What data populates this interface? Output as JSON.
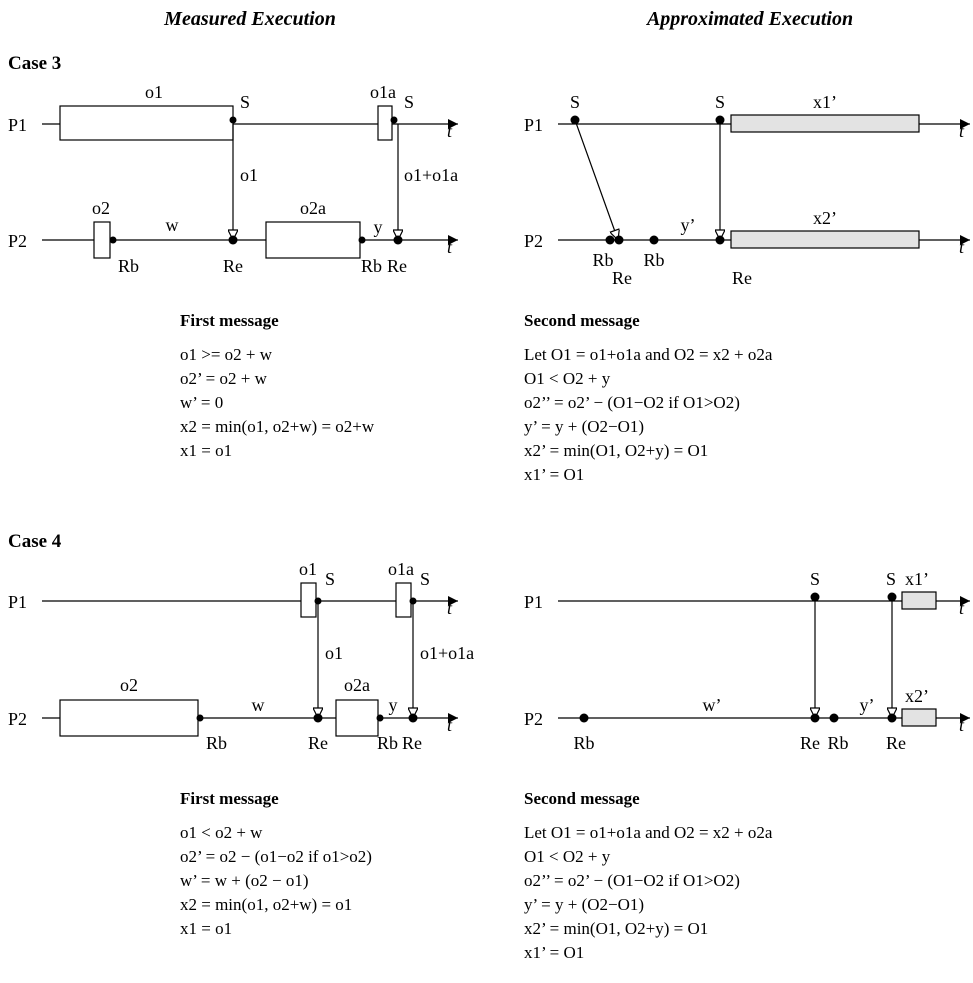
{
  "headers": {
    "left": "Measured Execution",
    "right": "Approximated Execution"
  },
  "case3": {
    "title": "Case 3",
    "measured": {
      "p1": "P1",
      "p2": "P2",
      "labels": {
        "o1_top": "o1",
        "s1": "S",
        "o1a_top": "o1a",
        "s2": "S",
        "o1_mid": "o1",
        "o1o1a_mid": "o1+o1a",
        "o2_top": "o2",
        "w": "w",
        "o2a_top": "o2a",
        "y": "y",
        "rb1": "Rb",
        "re1": "Re",
        "rb2": "Rb",
        "re2": "Re"
      },
      "t1": "t",
      "t2": "t"
    },
    "approx": {
      "p1": "P1",
      "p2": "P2",
      "labels": {
        "s1": "S",
        "s2": "S",
        "x1": "x1’",
        "x2": "x2’",
        "y": "y’",
        "rb1": "Rb",
        "re1": "Re",
        "rb2": "Rb",
        "re2": "Re"
      },
      "t1": "t",
      "t2": "t"
    },
    "first": {
      "title": "First message",
      "lines": [
        "o1 >= o2 + w",
        "o2’ = o2 + w",
        "w’ = 0",
        "x2 = min(o1, o2+w) = o2+w",
        "x1 = o1"
      ]
    },
    "second": {
      "title": "Second message",
      "lines": [
        "Let O1 = o1+o1a and O2 = x2 + o2a",
        "O1 < O2 + y",
        "o2’’ = o2’ − (O1−O2 if O1>O2)",
        "y’ = y + (O2−O1)",
        "x2’ = min(O1, O2+y) = O1",
        "x1’ = O1"
      ]
    }
  },
  "case4": {
    "title": "Case 4",
    "measured": {
      "p1": "P1",
      "p2": "P2",
      "labels": {
        "o1_top": "o1",
        "s1": "S",
        "o1a_top": "o1a",
        "s2": "S",
        "o1_mid": "o1",
        "o1o1a_mid": "o1+o1a",
        "o2_top": "o2",
        "w": "w",
        "o2a_top": "o2a",
        "y": "y",
        "rb1": "Rb",
        "re1": "Re",
        "rb2": "Rb",
        "re2": "Re"
      },
      "t1": "t",
      "t2": "t"
    },
    "approx": {
      "p1": "P1",
      "p2": "P2",
      "labels": {
        "s1": "S",
        "s2": "S",
        "x1": "x1’",
        "x2": "x2’",
        "w": "w’",
        "y": "y’",
        "rb1": "Rb",
        "re1": "Re",
        "rb2": "Rb",
        "re2": "Re"
      },
      "t1": "t",
      "t2": "t"
    },
    "first": {
      "title": "First message",
      "lines": [
        "o1 < o2 + w",
        "o2’ = o2 − (o1−o2 if o1>o2)",
        "w’ = w + (o2 − o1)",
        "x2 = min(o1, o2+w) = o1",
        "x1 = o1"
      ]
    },
    "second": {
      "title": "Second message",
      "lines": [
        "Let O1 = o1+o1a and O2 = x2 + o2a",
        "O1 < O2 + y",
        "o2’’ = o2’ − (O1−O2 if O1>O2)",
        "y’ = y + (O2−O1)",
        "x2’ = min(O1, O2+y) = O1",
        "x1’ = O1"
      ]
    }
  }
}
